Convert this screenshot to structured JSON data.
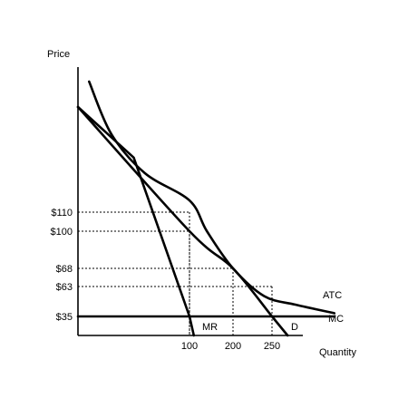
{
  "chart_data": {
    "type": "line",
    "title": "",
    "ylabel": "Price",
    "xlabel": "Quantity",
    "xlim": [
      0,
      320
    ],
    "ylim": [
      0,
      260
    ],
    "y_ticks": [
      {
        "value": 110,
        "label": "$110"
      },
      {
        "value": 100,
        "label": "$100"
      },
      {
        "value": 68,
        "label": "$68"
      },
      {
        "value": 63,
        "label": "$63"
      },
      {
        "value": 35,
        "label": "$35"
      }
    ],
    "x_ticks": [
      {
        "value": 100,
        "label": "100"
      },
      {
        "value": 200,
        "label": "200"
      },
      {
        "value": 250,
        "label": "250"
      }
    ],
    "series": [
      {
        "name": "D",
        "points": [
          [
            0,
            245
          ],
          [
            100,
            100
          ],
          [
            200,
            68
          ],
          [
            250,
            35
          ],
          [
            270,
            0
          ]
        ]
      },
      {
        "name": "MR",
        "points": [
          [
            0,
            245
          ],
          [
            50,
            180
          ],
          [
            100,
            35
          ],
          [
            110,
            0
          ]
        ]
      },
      {
        "name": "ATC",
        "points": [
          [
            10,
            270
          ],
          [
            30,
            210
          ],
          [
            60,
            160
          ],
          [
            100,
            125
          ],
          [
            140,
            100
          ],
          [
            200,
            68
          ],
          [
            240,
            54
          ],
          [
            280,
            46
          ],
          [
            330,
            38
          ]
        ]
      },
      {
        "name": "MC",
        "points": [
          [
            0,
            35
          ],
          [
            330,
            35
          ]
        ]
      }
    ],
    "guides": [
      {
        "x": 100,
        "y": 110
      },
      {
        "x": 100,
        "y": 100
      },
      {
        "x": 200,
        "y": 68
      },
      {
        "x": 250,
        "y": 63
      }
    ]
  }
}
